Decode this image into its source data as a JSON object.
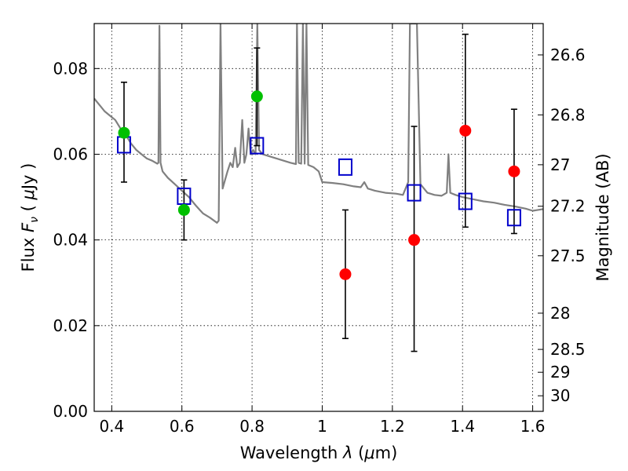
{
  "chart_data": {
    "type": "scatter",
    "xlabel_text": "Wavelength  ",
    "xlabel_symbol": "λ",
    "xlabel_unit_open": " (",
    "xlabel_unit_mu": "μ",
    "xlabel_unit_close": "m)",
    "ylabel_text": "Flux  ",
    "ylabel_symbol": "F",
    "ylabel_sub": "ν",
    "ylabel_unit_open": "  ( ",
    "ylabel_unit_mu": "μ",
    "ylabel_unit_close": "Jy )",
    "y2label": "Magnitude (AB)",
    "xlim": [
      0.35,
      1.63
    ],
    "ylim": [
      0.0,
      0.0905
    ],
    "x_ticks": [
      0.4,
      0.6,
      0.8,
      1.0,
      1.2,
      1.4,
      1.6
    ],
    "x_tick_labels": [
      "0.4",
      "0.6",
      "0.8",
      "1",
      "1.2",
      "1.4",
      "1.6"
    ],
    "y_ticks": [
      0.0,
      0.02,
      0.04,
      0.06,
      0.08
    ],
    "y_tick_labels": [
      "0.00",
      "0.02",
      "0.04",
      "0.06",
      "0.08"
    ],
    "mag_ticks": [
      26.6,
      26.8,
      27.0,
      27.2,
      27.5,
      28.0,
      28.5,
      29.0,
      30.0
    ],
    "mag_tick_labels": [
      "26.6",
      "26.8",
      "27",
      "27.2",
      "27.5",
      "28",
      "28.5",
      "29",
      "30"
    ],
    "grid": true,
    "colors": {
      "green_points": "#00c000",
      "red_points": "#ff0000",
      "model_squares": "#0000cc",
      "model_sed": "#808080",
      "errorbars": "#000000"
    },
    "series": [
      {
        "name": "observed detections (green)",
        "color": "#00c000",
        "points": [
          {
            "x": 0.435,
            "y": 0.065,
            "err_lo": 0.0535,
            "err_hi": 0.0768
          },
          {
            "x": 0.606,
            "y": 0.047,
            "err_lo": 0.04,
            "err_hi": 0.054
          },
          {
            "x": 0.814,
            "y": 0.0735,
            "err_lo": 0.062,
            "err_hi": 0.0848
          }
        ]
      },
      {
        "name": "observed (red)",
        "color": "#ff0000",
        "points": [
          {
            "x": 1.066,
            "y": 0.032,
            "err_lo": 0.017,
            "err_hi": 0.047
          },
          {
            "x": 1.262,
            "y": 0.04,
            "err_lo": 0.014,
            "err_hi": 0.0665
          },
          {
            "x": 1.408,
            "y": 0.0655,
            "err_lo": 0.043,
            "err_hi": 0.088
          },
          {
            "x": 1.547,
            "y": 0.056,
            "err_lo": 0.0415,
            "err_hi": 0.0705
          }
        ]
      },
      {
        "name": "model band fluxes (open squares)",
        "color": "#0000cc",
        "points": [
          {
            "x": 0.435,
            "y": 0.0622
          },
          {
            "x": 0.606,
            "y": 0.0502
          },
          {
            "x": 0.814,
            "y": 0.062
          },
          {
            "x": 1.066,
            "y": 0.057
          },
          {
            "x": 1.262,
            "y": 0.051
          },
          {
            "x": 1.408,
            "y": 0.049
          },
          {
            "x": 1.547,
            "y": 0.0452
          }
        ]
      },
      {
        "name": "model SED",
        "color": "#808080",
        "line": [
          [
            0.35,
            0.073
          ],
          [
            0.365,
            0.0715
          ],
          [
            0.38,
            0.07
          ],
          [
            0.395,
            0.069
          ],
          [
            0.41,
            0.068
          ],
          [
            0.425,
            0.066
          ],
          [
            0.44,
            0.0645
          ],
          [
            0.455,
            0.0625
          ],
          [
            0.47,
            0.061
          ],
          [
            0.485,
            0.06
          ],
          [
            0.5,
            0.059
          ],
          [
            0.515,
            0.0585
          ],
          [
            0.53,
            0.0578
          ],
          [
            0.533,
            0.058
          ],
          [
            0.536,
            0.09
          ],
          [
            0.539,
            0.058
          ],
          [
            0.545,
            0.056
          ],
          [
            0.56,
            0.0545
          ],
          [
            0.58,
            0.053
          ],
          [
            0.6,
            0.0515
          ],
          [
            0.62,
            0.05
          ],
          [
            0.64,
            0.048
          ],
          [
            0.66,
            0.0462
          ],
          [
            0.68,
            0.0452
          ],
          [
            0.7,
            0.044
          ],
          [
            0.705,
            0.0445
          ],
          [
            0.71,
            0.0905
          ],
          [
            0.716,
            0.052
          ],
          [
            0.723,
            0.054
          ],
          [
            0.73,
            0.056
          ],
          [
            0.738,
            0.058
          ],
          [
            0.745,
            0.057
          ],
          [
            0.752,
            0.0615
          ],
          [
            0.758,
            0.057
          ],
          [
            0.765,
            0.058
          ],
          [
            0.772,
            0.068
          ],
          [
            0.778,
            0.058
          ],
          [
            0.784,
            0.06
          ],
          [
            0.79,
            0.066
          ],
          [
            0.796,
            0.06
          ],
          [
            0.803,
            0.061
          ],
          [
            0.81,
            0.06
          ],
          [
            0.815,
            0.0905
          ],
          [
            0.82,
            0.061
          ],
          [
            0.83,
            0.06
          ],
          [
            0.85,
            0.0595
          ],
          [
            0.87,
            0.059
          ],
          [
            0.89,
            0.0585
          ],
          [
            0.91,
            0.058
          ],
          [
            0.925,
            0.0577
          ],
          [
            0.928,
            0.0905
          ],
          [
            0.933,
            0.058
          ],
          [
            0.94,
            0.0578
          ],
          [
            0.945,
            0.0905
          ],
          [
            0.95,
            0.0578
          ],
          [
            0.955,
            0.0905
          ],
          [
            0.96,
            0.0575
          ],
          [
            0.975,
            0.057
          ],
          [
            0.99,
            0.056
          ],
          [
            1.0,
            0.0535
          ],
          [
            1.03,
            0.0533
          ],
          [
            1.06,
            0.053
          ],
          [
            1.09,
            0.0525
          ],
          [
            1.11,
            0.0523
          ],
          [
            1.12,
            0.0535
          ],
          [
            1.13,
            0.052
          ],
          [
            1.15,
            0.0515
          ],
          [
            1.18,
            0.051
          ],
          [
            1.21,
            0.0508
          ],
          [
            1.23,
            0.0505
          ],
          [
            1.245,
            0.0535
          ],
          [
            1.25,
            0.0905
          ],
          [
            1.262,
            0.0905
          ],
          [
            1.27,
            0.0905
          ],
          [
            1.28,
            0.053
          ],
          [
            1.3,
            0.051
          ],
          [
            1.32,
            0.0505
          ],
          [
            1.34,
            0.0503
          ],
          [
            1.355,
            0.051
          ],
          [
            1.36,
            0.06
          ],
          [
            1.365,
            0.051
          ],
          [
            1.38,
            0.0505
          ],
          [
            1.4,
            0.05
          ],
          [
            1.43,
            0.0495
          ],
          [
            1.46,
            0.049
          ],
          [
            1.49,
            0.0487
          ],
          [
            1.52,
            0.0482
          ],
          [
            1.55,
            0.0478
          ],
          [
            1.58,
            0.0473
          ],
          [
            1.6,
            0.0468
          ],
          [
            1.615,
            0.047
          ],
          [
            1.63,
            0.0472
          ]
        ]
      }
    ]
  }
}
